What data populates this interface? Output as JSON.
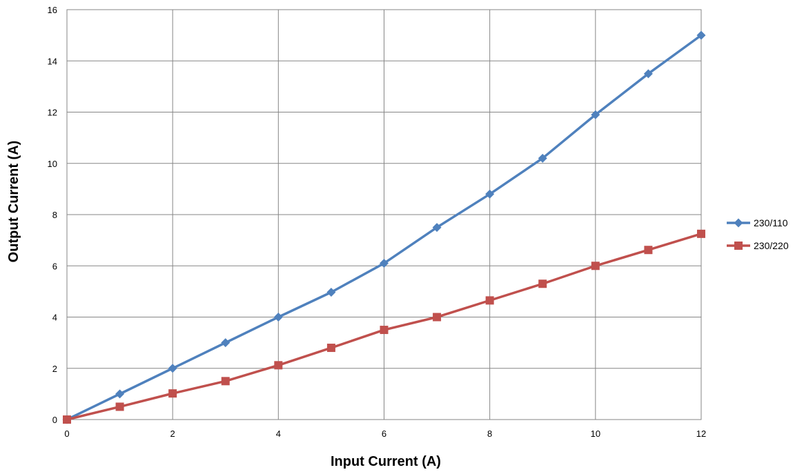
{
  "chart_data": {
    "type": "line",
    "xlabel": "Input Current (A)",
    "ylabel": "Output Current (A)",
    "xlim": [
      0,
      12
    ],
    "ylim": [
      0,
      16
    ],
    "x_ticks": [
      "0",
      "2",
      "4",
      "6",
      "8",
      "10",
      "12"
    ],
    "y_ticks": [
      "0",
      "2",
      "4",
      "6",
      "8",
      "10",
      "12",
      "14",
      "16"
    ],
    "grid": true,
    "legend_position": "right",
    "x": [
      0,
      1,
      2,
      3,
      4,
      5,
      6,
      7,
      8,
      9,
      10,
      11,
      12
    ],
    "series": [
      {
        "name": "230/110",
        "color": "#4F81BD",
        "marker": "diamond",
        "values": [
          0,
          1.0,
          2.0,
          3.0,
          4.0,
          4.97,
          6.1,
          7.5,
          8.8,
          10.2,
          11.9,
          13.5,
          15.0
        ]
      },
      {
        "name": "230/220",
        "color": "#C0504D",
        "marker": "square",
        "values": [
          0,
          0.5,
          1.02,
          1.5,
          2.12,
          2.8,
          3.5,
          4.0,
          4.65,
          5.3,
          6.0,
          6.62,
          7.25
        ]
      }
    ]
  }
}
